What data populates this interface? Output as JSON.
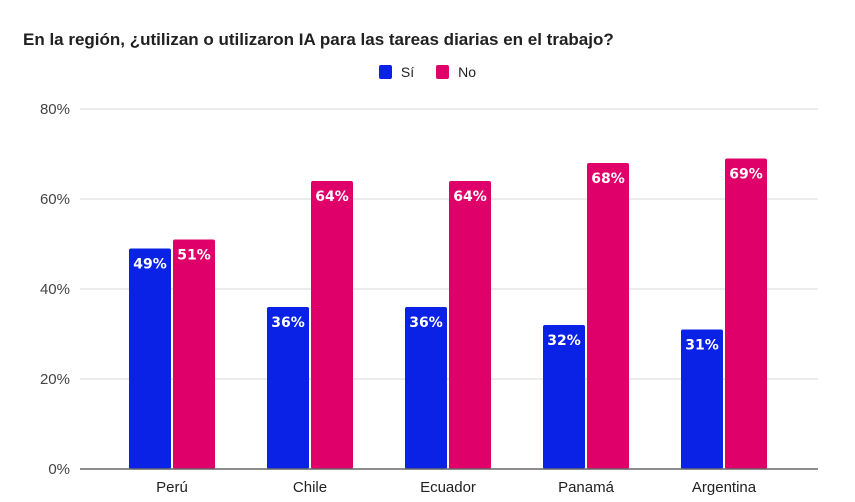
{
  "chart_data": {
    "type": "bar",
    "title": "En la región, ¿utilizan o utilizaron IA para las tareas diarias en el trabajo?",
    "xlabel": "",
    "ylabel": "",
    "ylim": [
      0,
      80
    ],
    "yticks": [
      0,
      20,
      40,
      60,
      80
    ],
    "ytick_labels": [
      "0%",
      "20%",
      "40%",
      "60%",
      "80%"
    ],
    "grid": true,
    "legend_position": "top-center",
    "categories": [
      "Perú",
      "Chile",
      "Ecuador",
      "Panamá",
      "Argentina"
    ],
    "series": [
      {
        "name": "Sí",
        "color": "#0A22E6",
        "values": [
          49,
          36,
          36,
          32,
          31
        ],
        "labels": [
          "49%",
          "36%",
          "36%",
          "32%",
          "31%"
        ]
      },
      {
        "name": "No",
        "color": "#E0006A",
        "values": [
          51,
          64,
          64,
          68,
          69
        ],
        "labels": [
          "51%",
          "64%",
          "64%",
          "68%",
          "69%"
        ]
      }
    ]
  }
}
